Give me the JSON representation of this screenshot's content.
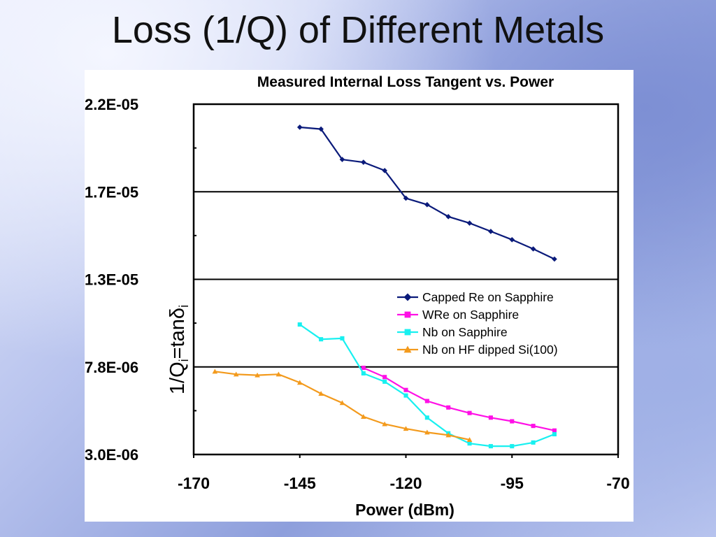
{
  "slide": {
    "title": "Loss (1/Q) of Different Metals"
  },
  "colors": {
    "capped_re": "#0a1a7a",
    "wre": "#ff10e6",
    "nb_sapphire": "#18f0f0",
    "nb_si": "#f39a1c"
  },
  "chart_data": {
    "type": "line",
    "title": "Measured Internal Loss Tangent vs. Power",
    "xlabel": "Power (dBm)",
    "ylabel": "1/Q",
    "ylabel_sub1": "i",
    "ylabel_mid": "=tanδ",
    "ylabel_sub2": "i",
    "xlim": [
      -170,
      -70
    ],
    "ylim": [
      3e-06,
      2.2e-05
    ],
    "x_ticks": [
      -170,
      -145,
      -120,
      -95,
      -70
    ],
    "x_tick_labels": [
      "-170",
      "-145",
      "-120",
      "-95",
      "-70"
    ],
    "y_tick_labels": [
      "2.2E-05",
      "1.7E-05",
      "1.3E-05",
      "7.8E-06",
      "3.0E-06"
    ],
    "gridlines": "horizontal major",
    "legend_position": "center-right",
    "series": [
      {
        "name": "Capped Re on Sapphire",
        "marker": "diamond",
        "color": "#0a1a7a",
        "x": [
          -145,
          -140,
          -135,
          -130,
          -125,
          -120,
          -115,
          -110,
          -105,
          -100,
          -95,
          -90,
          -85
        ],
        "y": [
          2.075e-05,
          2.065e-05,
          1.9e-05,
          1.885e-05,
          1.84e-05,
          1.69e-05,
          1.655e-05,
          1.59e-05,
          1.555e-05,
          1.51e-05,
          1.465e-05,
          1.415e-05,
          1.36e-05
        ]
      },
      {
        "name": "WRe on Sapphire",
        "marker": "square",
        "color": "#ff10e6",
        "x": [
          -130,
          -125,
          -120,
          -115,
          -110,
          -105,
          -100,
          -95,
          -90,
          -85
        ],
        "y": [
          7.7e-06,
          7.2e-06,
          6.5e-06,
          5.9e-06,
          5.55e-06,
          5.25e-06,
          5e-06,
          4.8e-06,
          4.55e-06,
          4.3e-06
        ]
      },
      {
        "name": "Nb on Sapphire",
        "marker": "square",
        "color": "#18f0f0",
        "x": [
          -145,
          -140,
          -135,
          -130,
          -125,
          -120,
          -115,
          -110,
          -105,
          -100,
          -95,
          -90,
          -85
        ],
        "y": [
          1.005e-05,
          9.25e-06,
          9.3e-06,
          7.4e-06,
          6.95e-06,
          6.2e-06,
          5e-06,
          4.15e-06,
          3.6e-06,
          3.45e-06,
          3.45e-06,
          3.65e-06,
          4.1e-06
        ]
      },
      {
        "name": "Nb on HF dipped Si(100)",
        "marker": "triangle",
        "color": "#f39a1c",
        "x": [
          -165,
          -160,
          -155,
          -150,
          -145,
          -140,
          -135,
          -130,
          -125,
          -120,
          -115,
          -110,
          -105
        ],
        "y": [
          7.5e-06,
          7.35e-06,
          7.3e-06,
          7.35e-06,
          6.9e-06,
          6.3e-06,
          5.8e-06,
          5.05e-06,
          4.65e-06,
          4.4e-06,
          4.2e-06,
          4.05e-06,
          3.8e-06
        ]
      }
    ]
  }
}
